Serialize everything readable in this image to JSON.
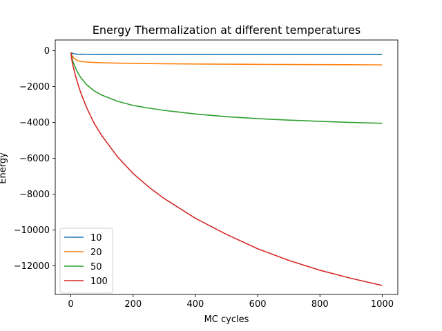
{
  "chart_data": {
    "type": "line",
    "title": "Energy Thermalization at different temperatures",
    "xlabel": "MC cycles",
    "ylabel": "Energy",
    "xlim": [
      -50,
      1050
    ],
    "ylim": [
      -13600,
      600
    ],
    "xticks": [
      0,
      200,
      400,
      600,
      800,
      1000
    ],
    "yticks": [
      0,
      -2000,
      -4000,
      -6000,
      -8000,
      -10000,
      -12000
    ],
    "grid": false,
    "legend_position": "lower-left",
    "x": [
      0,
      5,
      10,
      20,
      30,
      50,
      75,
      100,
      150,
      200,
      250,
      300,
      400,
      500,
      600,
      700,
      800,
      900,
      1000
    ],
    "series": [
      {
        "name": "10",
        "color": "#1f77b4",
        "values": [
          -100,
          -140,
          -170,
          -190,
          -195,
          -198,
          -200,
          -200,
          -200,
          -200,
          -200,
          -200,
          -200,
          -200,
          -200,
          -200,
          -200,
          -200,
          -200
        ]
      },
      {
        "name": "20",
        "color": "#ff7f0e",
        "values": [
          -100,
          -300,
          -420,
          -540,
          -590,
          -630,
          -655,
          -670,
          -690,
          -705,
          -715,
          -725,
          -740,
          -750,
          -760,
          -770,
          -775,
          -780,
          -790
        ]
      },
      {
        "name": "50",
        "color": "#2ca02c",
        "values": [
          -100,
          -500,
          -750,
          -1150,
          -1450,
          -1880,
          -2240,
          -2480,
          -2820,
          -3050,
          -3200,
          -3330,
          -3530,
          -3680,
          -3790,
          -3870,
          -3940,
          -4000,
          -4050
        ]
      },
      {
        "name": "100",
        "color": "#d62728",
        "values": [
          -100,
          -700,
          -1050,
          -1700,
          -2250,
          -3150,
          -4050,
          -4750,
          -5920,
          -6850,
          -7600,
          -8250,
          -9350,
          -10250,
          -11050,
          -11700,
          -12250,
          -12700,
          -13100
        ]
      }
    ]
  }
}
